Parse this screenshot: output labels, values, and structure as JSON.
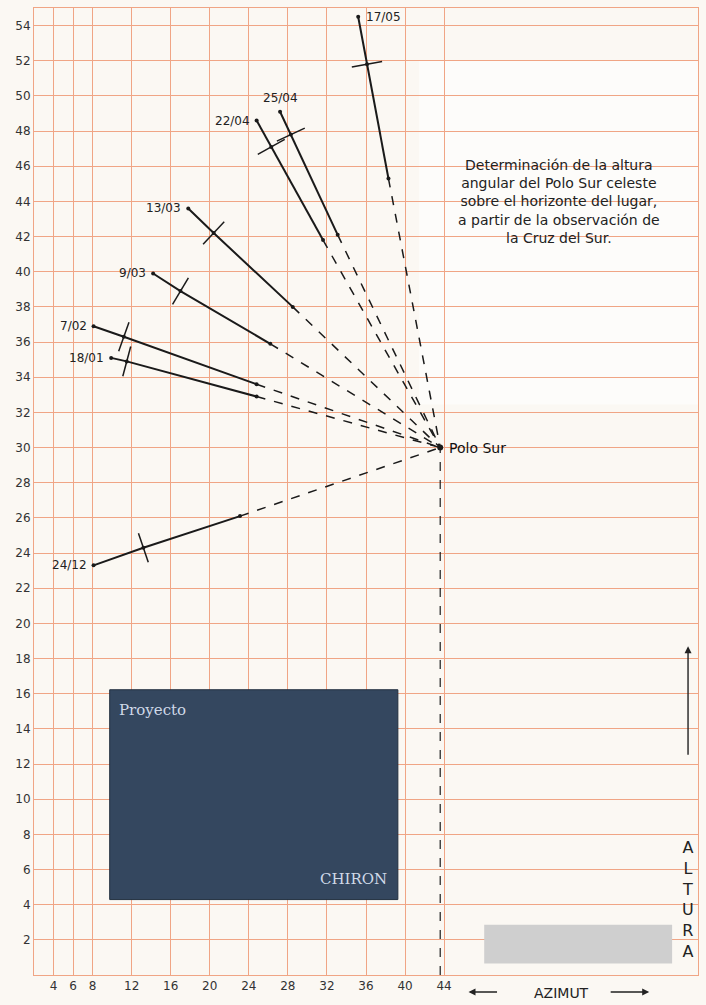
{
  "chart_data": {
    "type": "line",
    "title": "Determinación de la altura angular del Polo Sur celeste sobre el horizonte del lugar, a partir de la observación de la Cruz del Sur.",
    "x_label": "AZIMUT",
    "y_label": "ALTURA",
    "xlim": [
      2,
      70
    ],
    "ylim": [
      0,
      55
    ],
    "xticks": [
      4,
      6,
      8,
      12,
      16,
      20,
      24,
      28,
      32,
      36,
      40,
      44
    ],
    "yticks": [
      2,
      4,
      6,
      8,
      10,
      12,
      14,
      16,
      18,
      20,
      22,
      24,
      26,
      28,
      30,
      32,
      34,
      36,
      38,
      40,
      42,
      44,
      46,
      48,
      50,
      52,
      54
    ],
    "grid": true,
    "color": "#1a1a1a",
    "pole": {
      "label": "Polo Sur",
      "x": 43.6,
      "y": 30
    },
    "series": [
      {
        "name": "17/05",
        "x": [
          35.2,
          36.1,
          38.3
        ],
        "y": [
          54.5,
          51.8,
          45.3
        ]
      },
      {
        "name": "25/04",
        "x": [
          27.2,
          28.3,
          33.1
        ],
        "y": [
          49.1,
          47.8,
          42.1
        ]
      },
      {
        "name": "22/04",
        "x": [
          24.8,
          26.3,
          31.6
        ],
        "y": [
          48.6,
          47.1,
          41.8
        ]
      },
      {
        "name": "13/03",
        "x": [
          17.8,
          20.4,
          28.5
        ],
        "y": [
          43.6,
          42.2,
          38.0
        ]
      },
      {
        "name": "9/03",
        "x": [
          14.2,
          17.0,
          26.2
        ],
        "y": [
          39.9,
          38.9,
          35.9
        ]
      },
      {
        "name": "7/02",
        "x": [
          8.1,
          11.2,
          24.8
        ],
        "y": [
          36.9,
          36.3,
          33.6
        ]
      },
      {
        "name": "18/01",
        "x": [
          9.9,
          11.5,
          24.8
        ],
        "y": [
          35.1,
          34.9,
          32.9
        ]
      },
      {
        "name": "24/12",
        "x": [
          8.1,
          13.2,
          23.1
        ],
        "y": [
          23.3,
          24.3,
          26.1
        ]
      }
    ],
    "inset": {
      "texts": [
        "Proyecto",
        "CHIRON"
      ]
    }
  }
}
